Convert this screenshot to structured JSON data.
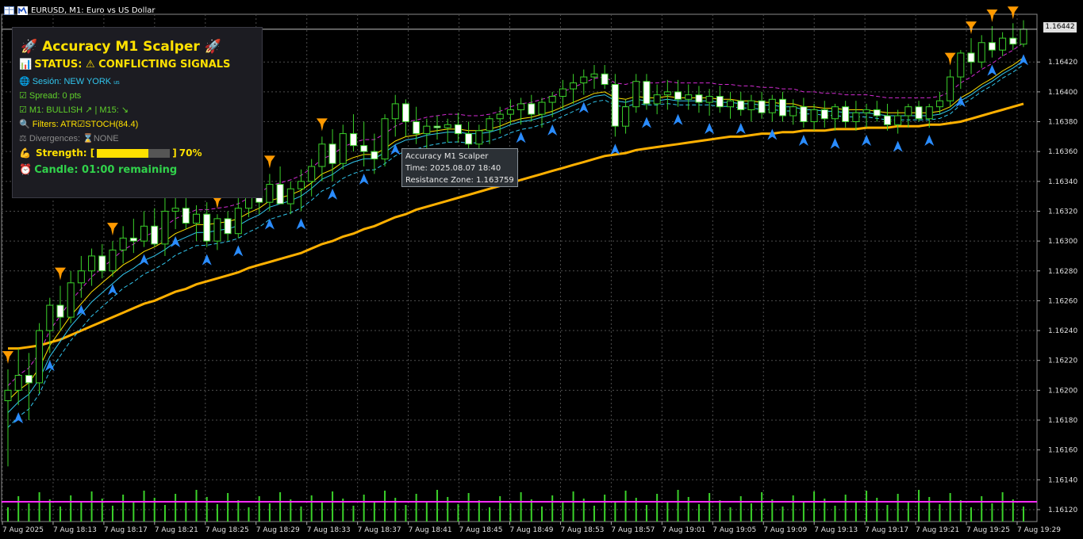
{
  "window": {
    "title": "EURUSD, M1:  Euro vs US Dollar"
  },
  "panel": {
    "title": "🚀 Accuracy M1 Scalper 🚀",
    "status": "STATUS: ⚠ CONFLICTING SIGNALS",
    "session": "Sesión: NEW YORK",
    "session_flag": "us",
    "spread": "Spread: 0 pts",
    "trend": "M1: BULLISH ↗ | M15: ↘",
    "filters_label": "Filters: ATR",
    "filters_stoch": "STOCH(84.4)",
    "divergences": "Divergences: ",
    "divergences_value": "NONE",
    "strength_label": "Strength: [",
    "strength_close": "]",
    "strength_pct": "70%",
    "strength_value": 0.7,
    "candle": "Candle: 01:00 remaining",
    "icons": {
      "status": "bar-chart-icon",
      "session": "globe-icon",
      "spread": "checkbox-icon",
      "trend": "checkbox-icon",
      "filters": "magnifier-icon",
      "divergences": "scale-icon",
      "strength": "flexed-arm-icon",
      "candle": "alarm-clock-icon"
    }
  },
  "tooltip": {
    "line1": "Accuracy M1 Scalper",
    "line2": "Time: 2025.08.07 18:40",
    "line3": "Resistance Zone: 1.163759"
  },
  "current_price": "1.16442",
  "chart_data": {
    "type": "candlestick",
    "symbol": "EURUSD",
    "timeframe": "M1",
    "y_ticks": [
      "1.16420",
      "1.16400",
      "1.16380",
      "1.16360",
      "1.16340",
      "1.16320",
      "1.16300",
      "1.16280",
      "1.16260",
      "1.16240",
      "1.16220",
      "1.16200",
      "1.16180",
      "1.16160",
      "1.16140",
      "1.16120"
    ],
    "x_ticks": [
      "7 Aug 2025",
      "7 Aug 18:13",
      "7 Aug 18:17",
      "7 Aug 18:21",
      "7 Aug 18:25",
      "7 Aug 18:29",
      "7 Aug 18:33",
      "7 Aug 18:37",
      "7 Aug 18:41",
      "7 Aug 18:45",
      "7 Aug 18:49",
      "7 Aug 18:53",
      "7 Aug 18:57",
      "7 Aug 19:01",
      "7 Aug 19:05",
      "7 Aug 19:09",
      "7 Aug 19:13",
      "7 Aug 19:17",
      "7 Aug 19:21",
      "7 Aug 19:25",
      "7 Aug 19:29"
    ],
    "ylim": [
      1.16112,
      1.16452
    ],
    "candles_ohlc": [
      [
        1.16193,
        1.16214,
        1.16149,
        1.162
      ],
      [
        1.162,
        1.16228,
        1.1619,
        1.1621
      ],
      [
        1.1621,
        1.16225,
        1.1618,
        1.16205
      ],
      [
        1.16205,
        1.16245,
        1.16198,
        1.1624
      ],
      [
        1.1624,
        1.16262,
        1.16225,
        1.16257
      ],
      [
        1.16257,
        1.1627,
        1.1624,
        1.16249
      ],
      [
        1.16249,
        1.1628,
        1.16245,
        1.16272
      ],
      [
        1.16272,
        1.1629,
        1.16262,
        1.1628
      ],
      [
        1.1628,
        1.16295,
        1.1627,
        1.1629
      ],
      [
        1.1629,
        1.16298,
        1.16275,
        1.1628
      ],
      [
        1.1628,
        1.163,
        1.16276,
        1.16294
      ],
      [
        1.16294,
        1.1631,
        1.16285,
        1.16302
      ],
      [
        1.16302,
        1.16315,
        1.16292,
        1.163
      ],
      [
        1.163,
        1.1632,
        1.16296,
        1.1631
      ],
      [
        1.1631,
        1.16322,
        1.16296,
        1.16298
      ],
      [
        1.16298,
        1.1633,
        1.1629,
        1.1632
      ],
      [
        1.1632,
        1.16335,
        1.16308,
        1.16322
      ],
      [
        1.16322,
        1.1633,
        1.16308,
        1.16312
      ],
      [
        1.16312,
        1.16324,
        1.163,
        1.16318
      ],
      [
        1.16318,
        1.16326,
        1.16296,
        1.163
      ],
      [
        1.163,
        1.16318,
        1.16294,
        1.16315
      ],
      [
        1.16315,
        1.1632,
        1.163,
        1.16305
      ],
      [
        1.16305,
        1.1633,
        1.16302,
        1.16322
      ],
      [
        1.16322,
        1.16338,
        1.16316,
        1.1633
      ],
      [
        1.1633,
        1.16342,
        1.16318,
        1.16326
      ],
      [
        1.16326,
        1.16345,
        1.1632,
        1.16338
      ],
      [
        1.16338,
        1.1635,
        1.16328,
        1.16325
      ],
      [
        1.16325,
        1.1634,
        1.16318,
        1.16335
      ],
      [
        1.16335,
        1.16348,
        1.1632,
        1.1634
      ],
      [
        1.1634,
        1.16355,
        1.1633,
        1.1635
      ],
      [
        1.1635,
        1.1637,
        1.1634,
        1.16365
      ],
      [
        1.16365,
        1.16375,
        1.1634,
        1.16352
      ],
      [
        1.16352,
        1.16378,
        1.16348,
        1.16372
      ],
      [
        1.16372,
        1.16385,
        1.1636,
        1.16364
      ],
      [
        1.16364,
        1.1638,
        1.1635,
        1.1636
      ],
      [
        1.1636,
        1.16372,
        1.16345,
        1.16355
      ],
      [
        1.16355,
        1.16385,
        1.1635,
        1.16382
      ],
      [
        1.16382,
        1.16398,
        1.1637,
        1.16392
      ],
      [
        1.16392,
        1.16395,
        1.1637,
        1.1638
      ],
      [
        1.1638,
        1.1639,
        1.16365,
        1.16372
      ],
      [
        1.16372,
        1.16382,
        1.16362,
        1.16377
      ],
      [
        1.16377,
        1.16384,
        1.16368,
        1.16376
      ],
      [
        1.16376,
        1.16382,
        1.16366,
        1.16378
      ],
      [
        1.16378,
        1.16386,
        1.16366,
        1.16372
      ],
      [
        1.16372,
        1.1638,
        1.1636,
        1.16365
      ],
      [
        1.16365,
        1.16378,
        1.16358,
        1.16374
      ],
      [
        1.16374,
        1.16384,
        1.16365,
        1.16382
      ],
      [
        1.16382,
        1.1639,
        1.16372,
        1.16385
      ],
      [
        1.16385,
        1.16395,
        1.16378,
        1.16388
      ],
      [
        1.16388,
        1.16396,
        1.16378,
        1.16392
      ],
      [
        1.16392,
        1.16398,
        1.1638,
        1.16385
      ],
      [
        1.16385,
        1.16396,
        1.16376,
        1.16393
      ],
      [
        1.16393,
        1.164,
        1.16383,
        1.16397
      ],
      [
        1.16397,
        1.16408,
        1.16388,
        1.16402
      ],
      [
        1.16402,
        1.16412,
        1.16392,
        1.16406
      ],
      [
        1.16406,
        1.16415,
        1.16398,
        1.1641
      ],
      [
        1.1641,
        1.16418,
        1.16402,
        1.16412
      ],
      [
        1.16412,
        1.16418,
        1.16402,
        1.16405
      ],
      [
        1.16405,
        1.16412,
        1.1637,
        1.16377
      ],
      [
        1.16377,
        1.16395,
        1.16372,
        1.1639
      ],
      [
        1.1639,
        1.16412,
        1.16386,
        1.16407
      ],
      [
        1.16407,
        1.16412,
        1.16388,
        1.16392
      ],
      [
        1.16392,
        1.16405,
        1.16385,
        1.16398
      ],
      [
        1.16398,
        1.16408,
        1.16388,
        1.164
      ],
      [
        1.164,
        1.16408,
        1.1639,
        1.16395
      ],
      [
        1.16395,
        1.16405,
        1.16388,
        1.16398
      ],
      [
        1.16398,
        1.16404,
        1.16386,
        1.16393
      ],
      [
        1.16393,
        1.16402,
        1.16384,
        1.16397
      ],
      [
        1.16397,
        1.16404,
        1.16386,
        1.1639
      ],
      [
        1.1639,
        1.164,
        1.16382,
        1.16394
      ],
      [
        1.16394,
        1.164,
        1.16384,
        1.16388
      ],
      [
        1.16388,
        1.16398,
        1.1638,
        1.16394
      ],
      [
        1.16394,
        1.164,
        1.16382,
        1.16386
      ],
      [
        1.16386,
        1.16398,
        1.1638,
        1.16395
      ],
      [
        1.16395,
        1.164,
        1.1638,
        1.16384
      ],
      [
        1.16384,
        1.16395,
        1.16378,
        1.1639
      ],
      [
        1.1639,
        1.16396,
        1.16376,
        1.1638
      ],
      [
        1.1638,
        1.16392,
        1.16374,
        1.16388
      ],
      [
        1.16388,
        1.16394,
        1.16376,
        1.16382
      ],
      [
        1.16382,
        1.16392,
        1.16374,
        1.1639
      ],
      [
        1.1639,
        1.16394,
        1.16376,
        1.1638
      ],
      [
        1.1638,
        1.16394,
        1.16374,
        1.16386
      ],
      [
        1.16386,
        1.16392,
        1.16376,
        1.16388
      ],
      [
        1.16388,
        1.16394,
        1.1638,
        1.16384
      ],
      [
        1.16384,
        1.16392,
        1.16374,
        1.16378
      ],
      [
        1.16378,
        1.16388,
        1.16372,
        1.16384
      ],
      [
        1.16384,
        1.16392,
        1.16376,
        1.1639
      ],
      [
        1.1639,
        1.16394,
        1.1638,
        1.16382
      ],
      [
        1.16382,
        1.16392,
        1.16376,
        1.1639
      ],
      [
        1.1639,
        1.164,
        1.16385,
        1.16394
      ],
      [
        1.16394,
        1.16415,
        1.1639,
        1.1641
      ],
      [
        1.1641,
        1.16428,
        1.16402,
        1.16426
      ],
      [
        1.16426,
        1.16436,
        1.16412,
        1.1642
      ],
      [
        1.1642,
        1.16438,
        1.16416,
        1.16433
      ],
      [
        1.16433,
        1.16444,
        1.16423,
        1.16428
      ],
      [
        1.16428,
        1.1644,
        1.16424,
        1.16436
      ],
      [
        1.16436,
        1.16446,
        1.16428,
        1.16432
      ],
      [
        1.16432,
        1.16448,
        1.1643,
        1.16442
      ]
    ],
    "sma_fast": [
      1.16193,
      1.162,
      1.16205,
      1.16215,
      1.1623,
      1.1624,
      1.1625,
      1.16258,
      1.16266,
      1.16272,
      1.16278,
      1.16284,
      1.16288,
      1.16293,
      1.16296,
      1.163,
      1.16305,
      1.16308,
      1.16311,
      1.16311,
      1.16312,
      1.16313,
      1.16315,
      1.16319,
      1.16322,
      1.16327,
      1.16329,
      1.16331,
      1.16334,
      1.16339,
      1.16345,
      1.16348,
      1.16353,
      1.16356,
      1.16358,
      1.16358,
      1.16362,
      1.16367,
      1.1637,
      1.16371,
      1.16373,
      1.16374,
      1.16375,
      1.16375,
      1.16374,
      1.16374,
      1.16375,
      1.16377,
      1.1638,
      1.16382,
      1.16383,
      1.16385,
      1.16387,
      1.1639,
      1.16393,
      1.16396,
      1.16399,
      1.164,
      1.16396,
      1.16395,
      1.16397,
      1.16396,
      1.16396,
      1.16397,
      1.16396,
      1.16396,
      1.16396,
      1.16396,
      1.16395,
      1.16395,
      1.16394,
      1.16394,
      1.16393,
      1.16393,
      1.16392,
      1.16392,
      1.1639,
      1.1639,
      1.16389,
      1.16389,
      1.16388,
      1.16388,
      1.16388,
      1.16387,
      1.16386,
      1.16386,
      1.16386,
      1.16386,
      1.16386,
      1.16387,
      1.1639,
      1.16396,
      1.164,
      1.16405,
      1.16409,
      1.16414,
      1.16418,
      1.16423
    ],
    "ema_slow": [
      1.16228,
      1.16228,
      1.16229,
      1.1623,
      1.16232,
      1.16234,
      1.16237,
      1.1624,
      1.16243,
      1.16246,
      1.16249,
      1.16252,
      1.16255,
      1.16258,
      1.1626,
      1.16263,
      1.16266,
      1.16268,
      1.16271,
      1.16273,
      1.16275,
      1.16277,
      1.16279,
      1.16282,
      1.16284,
      1.16286,
      1.16288,
      1.1629,
      1.16292,
      1.16295,
      1.16298,
      1.163,
      1.16303,
      1.16305,
      1.16308,
      1.1631,
      1.16313,
      1.16316,
      1.16318,
      1.16321,
      1.16323,
      1.16325,
      1.16327,
      1.16329,
      1.16331,
      1.16333,
      1.16335,
      1.16337,
      1.16339,
      1.16341,
      1.16343,
      1.16345,
      1.16347,
      1.16349,
      1.16351,
      1.16353,
      1.16355,
      1.16357,
      1.16358,
      1.16359,
      1.16361,
      1.16362,
      1.16363,
      1.16364,
      1.16365,
      1.16366,
      1.16367,
      1.16368,
      1.16369,
      1.1637,
      1.1637,
      1.16371,
      1.16372,
      1.16372,
      1.16373,
      1.16373,
      1.16374,
      1.16374,
      1.16374,
      1.16375,
      1.16375,
      1.16375,
      1.16376,
      1.16376,
      1.16376,
      1.16377,
      1.16377,
      1.16377,
      1.16378,
      1.16378,
      1.16379,
      1.1638,
      1.16382,
      1.16384,
      1.16386,
      1.16388,
      1.1639,
      1.16392
    ]
  },
  "colors": {
    "background": "#000000",
    "grid": "#4d4d4d",
    "candle_up_body": "#000000",
    "candle_down_body": "#ffffff",
    "candle_line": "#3bd12a",
    "sma_fast": "#ffe100",
    "ema_slow": "#ffb000",
    "ma_cyan": "#31c6ee",
    "ma_magenta": "#d22bd2",
    "volume": "#3bd12a",
    "volume_level": "#ff2bff",
    "buy_arrow": "#2a8cff",
    "sell_arrow": "#ff9a00"
  }
}
